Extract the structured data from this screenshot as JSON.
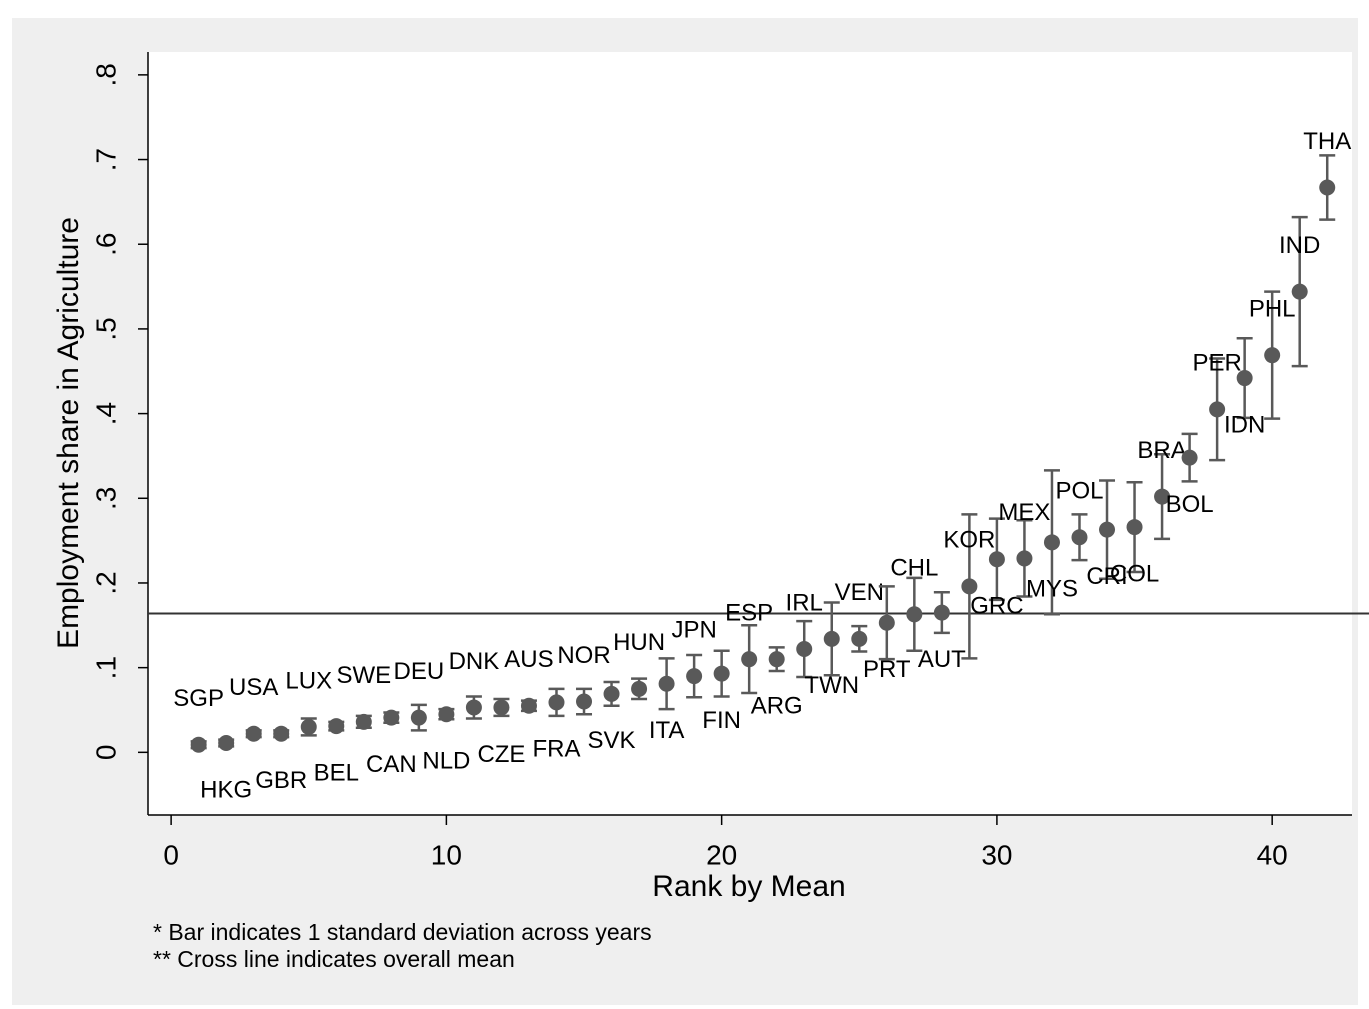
{
  "chart_data": {
    "type": "scatter",
    "xlabel": "Rank by Mean",
    "ylabel": "Employment share in Agriculture",
    "footnotes": [
      "* Bar indicates 1 standard deviation across years",
      "** Cross line indicates overall mean"
    ],
    "x": [
      1,
      2,
      3,
      4,
      5,
      6,
      7,
      8,
      9,
      10,
      11,
      12,
      13,
      14,
      15,
      16,
      17,
      18,
      19,
      20,
      21,
      22,
      23,
      24,
      25,
      26,
      27,
      28,
      29,
      30,
      31,
      32,
      33,
      34,
      35,
      36,
      37,
      38,
      39,
      40,
      41,
      42
    ],
    "labels": [
      "SGP",
      "HKG",
      "USA",
      "GBR",
      "LUX",
      "BEL",
      "SWE",
      "CAN",
      "DEU",
      "NLD",
      "DNK",
      "CZE",
      "AUS",
      "FRA",
      "NOR",
      "SVK",
      "HUN",
      "ITA",
      "JPN",
      "FIN",
      "ESP",
      "ARG",
      "IRL",
      "TWN",
      "VEN",
      "PRT",
      "CHL",
      "AUT",
      "KOR",
      "GRC",
      "MEX",
      "MYS",
      "POL",
      "CRI",
      "COL",
      "BRA",
      "BOL",
      "PER",
      "IDN",
      "PHL",
      "IND",
      "THA"
    ],
    "values": [
      0.009,
      0.011,
      0.022,
      0.022,
      0.03,
      0.031,
      0.036,
      0.041,
      0.041,
      0.045,
      0.053,
      0.053,
      0.055,
      0.059,
      0.06,
      0.069,
      0.075,
      0.081,
      0.09,
      0.093,
      0.11,
      0.11,
      0.122,
      0.134,
      0.134,
      0.153,
      0.163,
      0.165,
      0.196,
      0.228,
      0.229,
      0.248,
      0.254,
      0.263,
      0.266,
      0.302,
      0.348,
      0.405,
      0.442,
      0.469,
      0.544,
      0.667
    ],
    "errors": [
      0.004,
      0.004,
      0.004,
      0.004,
      0.01,
      0.005,
      0.007,
      0.006,
      0.015,
      0.006,
      0.013,
      0.01,
      0.006,
      0.016,
      0.015,
      0.014,
      0.012,
      0.03,
      0.025,
      0.027,
      0.04,
      0.014,
      0.033,
      0.043,
      0.015,
      0.043,
      0.043,
      0.024,
      0.085,
      0.048,
      0.045,
      0.085,
      0.027,
      0.058,
      0.053,
      0.05,
      0.028,
      0.06,
      0.047,
      0.075,
      0.088,
      0.038
    ],
    "color": "#595959",
    "mean_line": 0.164,
    "xlim": [
      -0.84,
      42.9
    ],
    "ylim": [
      -0.074,
      0.827
    ],
    "xticks": [
      0,
      10,
      20,
      30,
      40
    ],
    "yticks": [
      0,
      {
        "value": 0.1,
        "label": ".1"
      },
      {
        "value": 0.2,
        "label": ".2"
      },
      {
        "value": 0.3,
        "label": ".3"
      },
      {
        "value": 0.4,
        "label": ".4"
      },
      {
        "value": 0.5,
        "label": ".5"
      },
      {
        "value": 0.6,
        "label": ".6"
      },
      {
        "value": 0.7,
        "label": ".7"
      },
      {
        "value": 0.8,
        "label": ".8"
      }
    ]
  }
}
